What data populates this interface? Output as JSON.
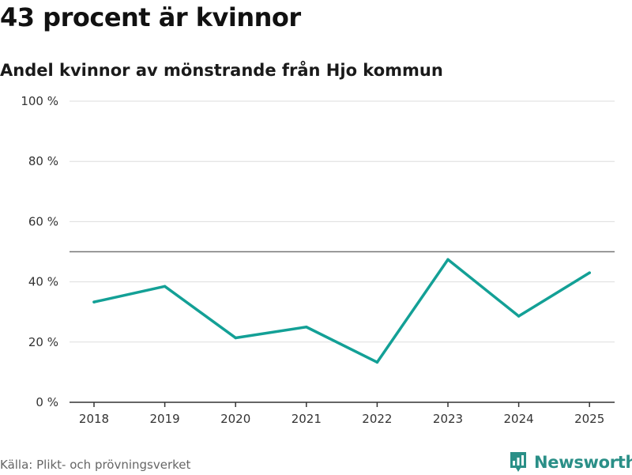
{
  "header": {
    "title": "43 procent är kvinnor",
    "subtitle": "Andel kvinnor av mönstrande från Hjo kommun"
  },
  "footer": {
    "source": "Källa: Plikt- och prövningsverket",
    "brand": "Newsworthy"
  },
  "colors": {
    "series": "#13a096",
    "grid": "#dddddd",
    "reference_line": "#777777",
    "axis": "#333333",
    "brand": "#2a8f87"
  },
  "chart_data": {
    "type": "line",
    "title": "43 procent är kvinnor",
    "subtitle": "Andel kvinnor av mönstrande från Hjo kommun",
    "xlabel": "",
    "ylabel": "",
    "categories": [
      "2018",
      "2019",
      "2020",
      "2021",
      "2022",
      "2023",
      "2024",
      "2025"
    ],
    "series": [
      {
        "name": "Andel kvinnor",
        "values": [
          33.3,
          38.5,
          21.4,
          25.0,
          13.3,
          47.4,
          28.6,
          43.0
        ]
      }
    ],
    "ylim": [
      0,
      100
    ],
    "yticks": [
      0,
      20,
      40,
      60,
      80,
      100
    ],
    "ytick_labels": [
      "0 %",
      "20 %",
      "40 %",
      "60 %",
      "80 %",
      "100 %"
    ],
    "reference_line": 50,
    "grid": true
  }
}
